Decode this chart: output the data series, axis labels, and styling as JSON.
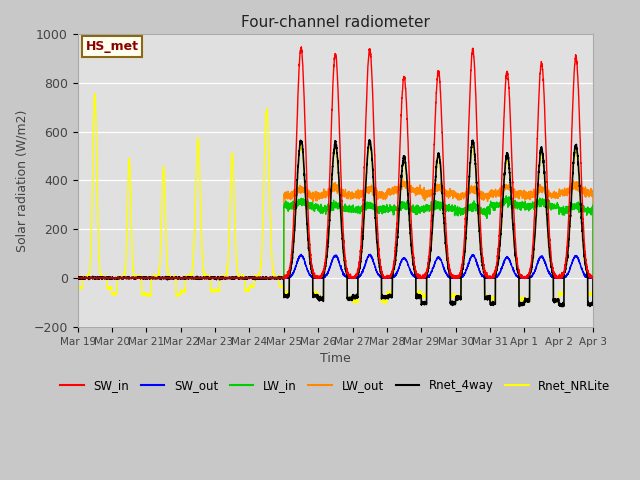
{
  "title": "Four-channel radiometer",
  "xlabel": "Time",
  "ylabel": "Solar radiation (W/m2)",
  "ylim": [
    -200,
    1000
  ],
  "fig_facecolor": "#c8c8c8",
  "plot_facecolor": "#e0e0e0",
  "annotation_text": "HS_met",
  "annotation_bg": "#fffff0",
  "annotation_border": "#8b6914",
  "annotation_text_color": "#8b0000",
  "lines": {
    "SW_in": {
      "color": "#ff0000",
      "lw": 1.0,
      "zorder": 7
    },
    "SW_out": {
      "color": "#0000ff",
      "lw": 1.0,
      "zorder": 5
    },
    "LW_in": {
      "color": "#00cc00",
      "lw": 1.0,
      "zorder": 4
    },
    "LW_out": {
      "color": "#ff8800",
      "lw": 1.0,
      "zorder": 3
    },
    "Rnet_4way": {
      "color": "#000000",
      "lw": 1.2,
      "zorder": 6
    },
    "Rnet_NRLite": {
      "color": "#ffff00",
      "lw": 1.0,
      "zorder": 2
    }
  },
  "tick_labels": [
    "Mar 19",
    "Mar 20",
    "Mar 21",
    "Mar 22",
    "Mar 23",
    "Mar 24",
    "Mar 25",
    "Mar 26",
    "Mar 27",
    "Mar 28",
    "Mar 29",
    "Mar 30",
    "Mar 31",
    "Apr 1",
    "Apr 2",
    "Apr 3"
  ],
  "n_days": 15,
  "pts_per_day": 288,
  "cloudy_days": 6,
  "figsize": [
    6.4,
    4.8
  ],
  "dpi": 100
}
